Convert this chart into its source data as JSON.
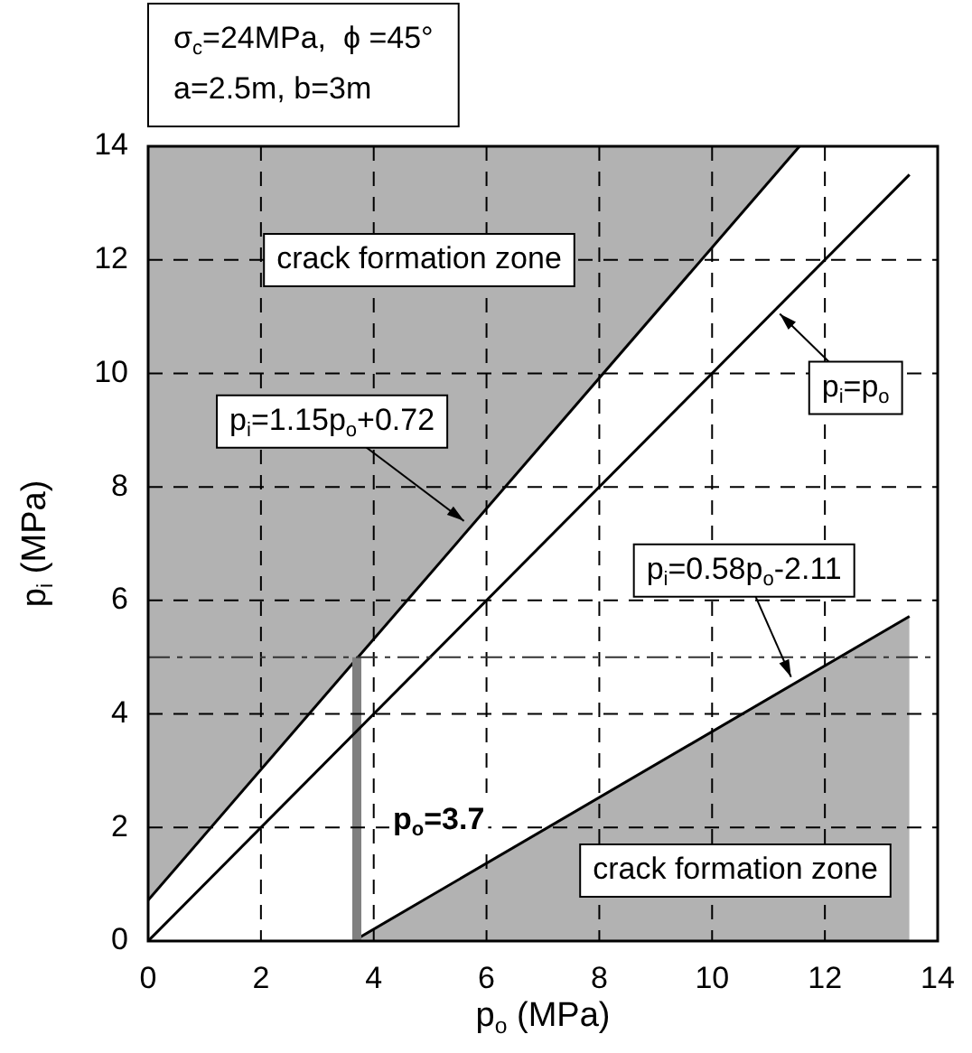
{
  "chart_data": {
    "type": "line",
    "annotations": [
      "σ$_{c}$=24MPa,  ϕ =45°",
      "a=2.5m, b=3m",
      "crack formation zone",
      "crack formation zone",
      {
        "text": "p$_{i}$=1.15p$_{o}$+0.72",
        "x": 5.6,
        "y": 7.4
      },
      {
        "text": "p$_{i}$=p$_{o}$",
        "x": 11.2,
        "y": 11.05
      },
      {
        "text": "p$_{i}$=0.58p$_{o}$-2.11",
        "x": 11.4,
        "y": 4.65
      }
    ],
    "xlabel": "p$_{o}$ (MPa)",
    "ylabel": "p$_{i}$ (MPa)",
    "xlim": [
      0,
      14
    ],
    "ylim": [
      0,
      14
    ],
    "xticks": [
      0,
      2,
      4,
      6,
      8,
      10,
      12,
      14
    ],
    "yticks": [
      0,
      2,
      4,
      6,
      8,
      10,
      12,
      14
    ],
    "grid": true,
    "legend": false,
    "marker": "none",
    "ref_lines": [
      {
        "axis": "y",
        "value": 5,
        "color": "#333333",
        "line_style": "dashed"
      }
    ],
    "series": [
      {
        "color": "#000000",
        "x": [
          0,
          11.55
        ],
        "values": [
          0.72,
          14
        ],
        "lower": [
          0.72,
          14
        ],
        "upper": [
          14,
          14
        ]
      },
      {
        "color": "#000000",
        "x": [
          0,
          13.5
        ],
        "values": [
          0,
          13.5
        ]
      },
      {
        "type": "area",
        "color": "#000000",
        "x": [
          3.64,
          13.5
        ],
        "values": [
          0,
          5.72
        ]
      },
      {
        "name": "p$_{o}$=3.7",
        "color": "#808080",
        "x": [
          3.7,
          3.7
        ],
        "values": [
          0,
          5
        ]
      }
    ]
  }
}
